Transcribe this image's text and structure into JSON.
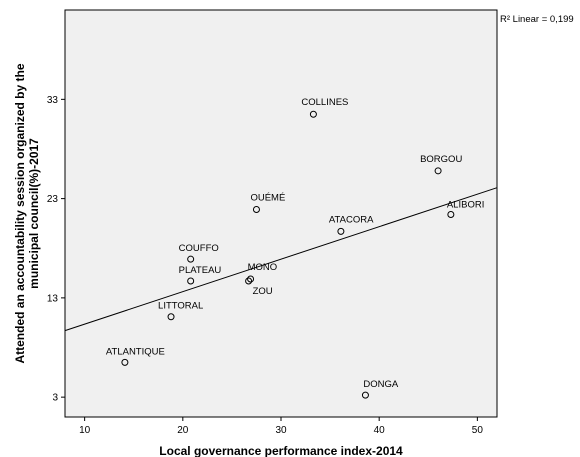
{
  "chart_data": {
    "type": "scatter",
    "title": "",
    "xlabel": "Local governance performance index-2014",
    "ylabel": "Attended an accountability session organized by the municipal council(%)-2017",
    "xlim": [
      8,
      52
    ],
    "ylim": [
      1,
      42
    ],
    "x_ticks": [
      "10",
      "20",
      "30",
      "40",
      "50"
    ],
    "y_ticks": [
      "3",
      "13",
      "23",
      "33"
    ],
    "points": [
      {
        "label": "COLLINES",
        "x": 33.3,
        "y": 31.5
      },
      {
        "label": "BORGOU",
        "x": 46.0,
        "y": 25.8
      },
      {
        "label": "OUÉMÉ",
        "x": 27.5,
        "y": 21.9
      },
      {
        "label": "ATACORA",
        "x": 36.1,
        "y": 19.7
      },
      {
        "label": "ALIBORI",
        "x": 47.3,
        "y": 21.4
      },
      {
        "label": "COUFFO",
        "x": 20.8,
        "y": 16.9
      },
      {
        "label": "PLATEAU",
        "x": 20.8,
        "y": 14.7
      },
      {
        "label": "MONO",
        "x": 26.9,
        "y": 14.9
      },
      {
        "label": "ZOU",
        "x": 26.7,
        "y": 14.7
      },
      {
        "label": "LITTORAL",
        "x": 18.8,
        "y": 11.1
      },
      {
        "label": "ATLANTIQUE",
        "x": 14.1,
        "y": 6.5
      },
      {
        "label": "DONGA",
        "x": 38.6,
        "y": 3.2
      }
    ],
    "fit_line": {
      "type": "linear",
      "x": [
        8,
        52
      ],
      "y": [
        9.7,
        24.1
      ],
      "r2_label": "R² Linear = 0,199"
    },
    "background_color": "#f0f0f0",
    "grid": false,
    "legend": "none"
  }
}
